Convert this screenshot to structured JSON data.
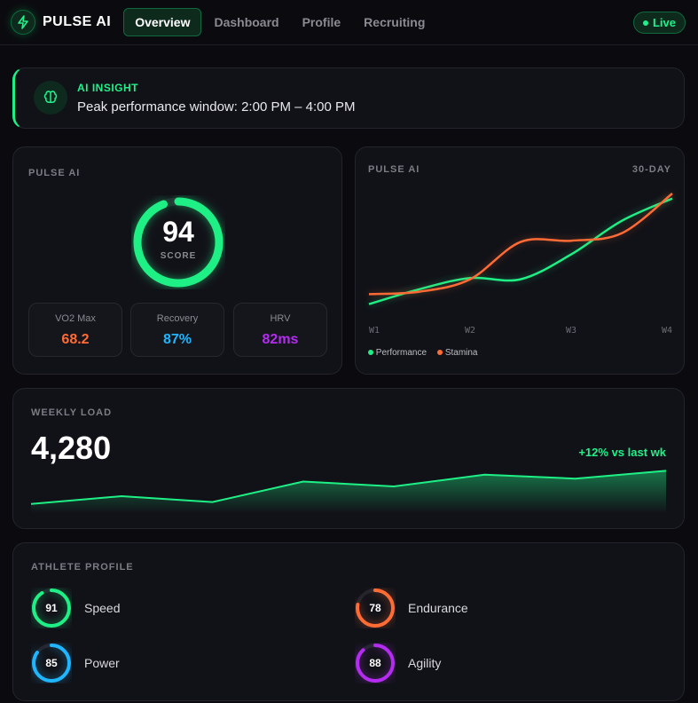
{
  "header": {
    "brand": "PULSE AI",
    "tabs": [
      "Overview",
      "Dashboard",
      "Profile",
      "Recruiting"
    ],
    "active_tab": "Overview",
    "status": "Live"
  },
  "insight": {
    "title": "AI INSIGHT",
    "message": "Peak performance window: 2:00 PM – 4:00 PM",
    "icon": "brain-icon"
  },
  "score_card": {
    "label": "PULSE AI",
    "score": "94",
    "score_label": "SCORE",
    "score_percent": 94,
    "stats": [
      {
        "label": "VO2 Max",
        "value": "68.2",
        "color": "#ff6b35"
      },
      {
        "label": "Recovery",
        "value": "87%",
        "color": "#1fb6ff"
      },
      {
        "label": "HRV",
        "value": "82ms",
        "color": "#b42cf0"
      }
    ]
  },
  "trend_card": {
    "label": "PULSE AI",
    "period": "30-DAY"
  },
  "chart_data": {
    "type": "line",
    "categories": [
      "W1",
      "W2",
      "W3",
      "W4"
    ],
    "x": [
      1,
      1.5,
      2,
      2.5,
      3,
      3.5,
      4
    ],
    "ylim": [
      0,
      100
    ],
    "grid": false,
    "legend": "bottom-left",
    "series": [
      {
        "name": "Performance",
        "color": "#1ef086",
        "values": [
          6,
          18,
          27,
          26,
          46,
          73,
          91
        ]
      },
      {
        "name": "Stamina",
        "color": "#ff6b35",
        "values": [
          14,
          16,
          26,
          56,
          57,
          63,
          95
        ]
      }
    ]
  },
  "weekly_load": {
    "label": "WEEKLY LOAD",
    "value": "4,280",
    "change": "+12% vs last wk",
    "sparkline": [
      12,
      20,
      14,
      35,
      30,
      42,
      38,
      46
    ]
  },
  "athlete_profile": {
    "label": "ATHLETE PROFILE",
    "attributes": [
      {
        "name": "Speed",
        "value": 91,
        "color": "#1ef086"
      },
      {
        "name": "Endurance",
        "value": 78,
        "color": "#ff6b35"
      },
      {
        "name": "Power",
        "value": 85,
        "color": "#1fb6ff"
      },
      {
        "name": "Agility",
        "value": 88,
        "color": "#b42cf0"
      }
    ]
  }
}
